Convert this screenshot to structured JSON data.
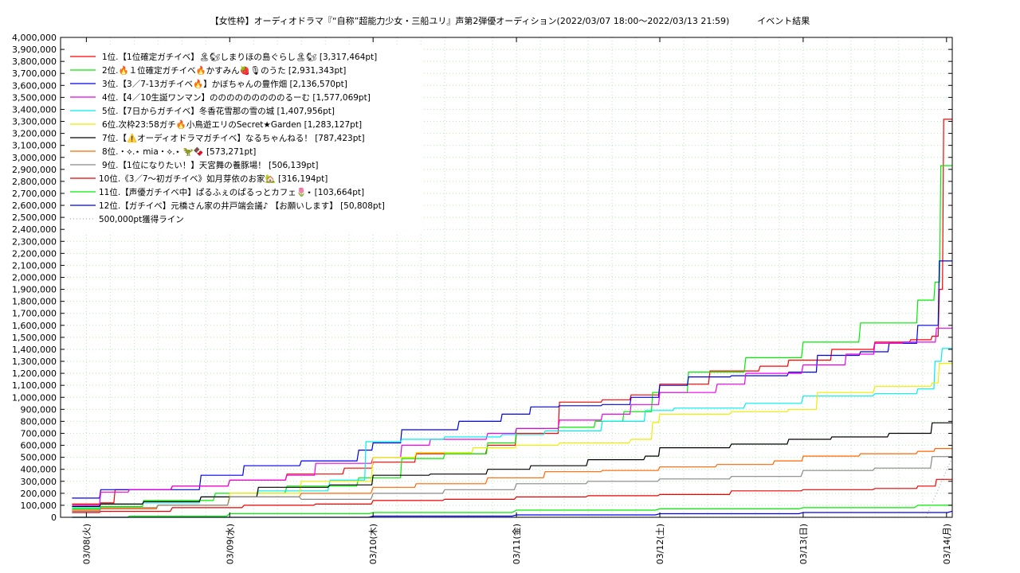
{
  "chart_data": {
    "type": "line",
    "title": "【女性枠】オーディオドラマ『“自称”超能力少女・三船ユリ』声第2弾優オーディション(2022/03/07 18:00〜2022/03/13 21:59)",
    "subtitle": "イベント結果",
    "xlabel": "",
    "ylabel": "",
    "ylim": [
      0,
      4000000
    ],
    "xlim": [
      0,
      6.04
    ],
    "y_ticks": [
      "0",
      "100,000",
      "200,000",
      "300,000",
      "400,000",
      "500,000",
      "600,000",
      "700,000",
      "800,000",
      "900,000",
      "1,000,000",
      "1,100,000",
      "1,200,000",
      "1,300,000",
      "1,400,000",
      "1,500,000",
      "1,600,000",
      "1,700,000",
      "1,800,000",
      "1,900,000",
      "2,000,000",
      "2,100,000",
      "2,200,000",
      "2,300,000",
      "2,400,000",
      "2,500,000",
      "2,600,000",
      "2,700,000",
      "2,800,000",
      "2,900,000",
      "3,000,000",
      "3,100,000",
      "3,200,000",
      "3,300,000",
      "3,400,000",
      "3,500,000",
      "3,600,000",
      "3,700,000",
      "3,800,000",
      "3,900,000",
      "4,000,000"
    ],
    "x_ticks": [
      "03/08(火)",
      "03/09(水)",
      "03/10(木)",
      "03/11(金)",
      "03/12(土)",
      "03/13(日)",
      "03/14(月)"
    ],
    "grid": true,
    "legend_position": "top-left",
    "series": [
      {
        "name": "1位.【1位確定ガチイベ】🏝🐿しまりほの島ぐらし🏝🐿 [3,317,464pt]",
        "color": "#ff0000",
        "dash": "",
        "x": [
          -0.1,
          0.1,
          0.2,
          0.6,
          1.0,
          1.4,
          1.8,
          2.0,
          2.3,
          2.8,
          3.0,
          3.3,
          3.6,
          3.8,
          4.0,
          4.35,
          4.7,
          4.9,
          5.2,
          5.5,
          5.75,
          5.9,
          5.95,
          5.98,
          6.04
        ],
        "y": [
          110000,
          120000,
          230000,
          260000,
          310000,
          360000,
          410000,
          460000,
          530000,
          600000,
          700000,
          960000,
          980000,
          1020000,
          1110000,
          1220000,
          1260000,
          1310000,
          1400000,
          1460000,
          1480000,
          1510000,
          1900000,
          3317464,
          3317464
        ]
      },
      {
        "name": "2位.🔥１位確定ガチイベ🔥かすみん🍓🎙のうた [2,931,343pt]",
        "color": "#00ee00",
        "dash": "",
        "x": [
          -0.1,
          0.1,
          0.4,
          0.9,
          1.4,
          1.9,
          2.2,
          2.5,
          2.8,
          3.0,
          3.3,
          3.55,
          3.75,
          3.95,
          4.2,
          4.6,
          5.0,
          5.4,
          5.6,
          5.8,
          5.92,
          5.96,
          6.04
        ],
        "y": [
          70000,
          90000,
          140000,
          200000,
          260000,
          330000,
          490000,
          530000,
          620000,
          740000,
          750000,
          800000,
          880000,
          1040000,
          1210000,
          1330000,
          1460000,
          1620000,
          1620000,
          1810000,
          1960000,
          2931343,
          2931343
        ]
      },
      {
        "name": "3位.【3／7-13ガチイベ🔥】かぼちゃんの豊作畑 [2,136,570pt]",
        "color": "#0000ee",
        "dash": "",
        "x": [
          -0.1,
          0.1,
          0.4,
          0.8,
          1.1,
          1.5,
          1.9,
          2.0,
          2.2,
          2.6,
          2.9,
          3.1,
          3.3,
          3.6,
          3.8,
          4.0,
          4.2,
          4.5,
          4.9,
          5.1,
          5.4,
          5.6,
          5.8,
          5.95,
          6.04
        ],
        "y": [
          160000,
          230000,
          230000,
          350000,
          430000,
          470000,
          560000,
          620000,
          730000,
          800000,
          860000,
          920000,
          930000,
          940000,
          1000000,
          1100000,
          1170000,
          1180000,
          1210000,
          1350000,
          1380000,
          1450000,
          1600000,
          2136570,
          2136570
        ]
      },
      {
        "name": "4位.【4／10生誕ワンマン】のののののののののるーむ [1,577,069pt]",
        "color": "#ee00ee",
        "dash": "",
        "x": [
          -0.1,
          0.1,
          0.3,
          0.6,
          1.0,
          1.4,
          1.6,
          2.0,
          2.2,
          2.4,
          2.8,
          3.0,
          3.3,
          3.6,
          3.8,
          4.0,
          4.4,
          4.6,
          5.0,
          5.3,
          5.5,
          5.7,
          5.93,
          6.04
        ],
        "y": [
          100000,
          210000,
          230000,
          260000,
          310000,
          350000,
          450000,
          500000,
          600000,
          650000,
          700000,
          740000,
          810000,
          860000,
          940000,
          1040000,
          1110000,
          1200000,
          1270000,
          1360000,
          1450000,
          1460000,
          1577069,
          1577069
        ]
      },
      {
        "name": "5位.【7日からガチイベ】冬香花雪那の雪の城 [1,407,956pt]",
        "color": "#00eeee",
        "dash": "",
        "x": [
          -0.1,
          0.1,
          0.4,
          0.8,
          1.2,
          1.7,
          1.95,
          2.2,
          2.5,
          2.9,
          3.2,
          3.6,
          3.9,
          4.1,
          4.6,
          5.0,
          5.5,
          5.8,
          5.92,
          5.97,
          6.04
        ],
        "y": [
          80000,
          110000,
          120000,
          170000,
          220000,
          310000,
          630000,
          650000,
          670000,
          690000,
          720000,
          800000,
          890000,
          910000,
          950000,
          1010000,
          1030000,
          1070000,
          1300000,
          1407956,
          1407956
        ]
      },
      {
        "name": "6位.次枠23:58ガチ🔥小鳥遊エリのSecret★Garden [1,283,127pt]",
        "color": "#eeee00",
        "dash": "",
        "x": [
          -0.1,
          0.1,
          0.5,
          1.0,
          1.5,
          2.0,
          2.3,
          2.7,
          3.0,
          3.3,
          3.8,
          3.95,
          4.0,
          4.5,
          4.9,
          5.1,
          5.5,
          5.9,
          5.95,
          6.04
        ],
        "y": [
          60000,
          80000,
          100000,
          200000,
          300000,
          500000,
          540000,
          580000,
          600000,
          620000,
          650000,
          790000,
          860000,
          880000,
          900000,
          1040000,
          1090000,
          1120000,
          1283127,
          1283127
        ]
      },
      {
        "name": "7位.【⚠️オーディオドラマガチイベ】なるちゃんねる！ [787,423pt]",
        "color": "#000000",
        "dash": "",
        "x": [
          -0.1,
          0.1,
          0.4,
          0.8,
          1.2,
          1.7,
          2.0,
          2.4,
          2.8,
          3.1,
          3.5,
          3.9,
          4.0,
          4.5,
          4.9,
          5.2,
          5.6,
          5.9,
          6.04
        ],
        "y": [
          90000,
          110000,
          130000,
          170000,
          250000,
          270000,
          350000,
          360000,
          400000,
          430000,
          480000,
          510000,
          580000,
          610000,
          650000,
          670000,
          700000,
          787423,
          787423
        ]
      },
      {
        "name": "8位.・⟡.⋆ mia・⟡.⋆ 🦖🍫 [573,271pt]",
        "color": "#ff6600",
        "dash": "",
        "x": [
          -0.1,
          0.1,
          0.5,
          1.0,
          1.5,
          2.0,
          2.3,
          2.8,
          3.2,
          3.6,
          4.0,
          4.4,
          4.8,
          5.0,
          5.4,
          5.8,
          5.92,
          6.04
        ],
        "y": [
          60000,
          70000,
          100000,
          170000,
          200000,
          250000,
          280000,
          330000,
          380000,
          390000,
          420000,
          440000,
          470000,
          510000,
          530000,
          550000,
          573271,
          573271
        ]
      },
      {
        "name": "9位.【1位になりたい！】天宮舞の養豚場！ [506,139pt]",
        "color": "#888888",
        "dash": "",
        "x": [
          -0.1,
          0.1,
          0.5,
          1.0,
          1.5,
          2.0,
          2.5,
          3.0,
          3.5,
          4.0,
          4.5,
          5.0,
          5.5,
          5.9,
          6.04
        ],
        "y": [
          50000,
          80000,
          100000,
          170000,
          150000,
          200000,
          230000,
          280000,
          300000,
          320000,
          340000,
          390000,
          410000,
          506139,
          506139
        ]
      },
      {
        "name": "10位.《3／7〜初ガチイベ》如月芽依のお家🏡 [316,194pt]",
        "color": "#ee0000",
        "dash": "",
        "x": [
          -0.1,
          0.1,
          0.6,
          1.1,
          1.6,
          2.0,
          2.5,
          3.0,
          3.5,
          4.0,
          4.5,
          5.0,
          5.5,
          5.8,
          5.93,
          6.04
        ],
        "y": [
          40000,
          50000,
          80000,
          100000,
          110000,
          140000,
          150000,
          170000,
          180000,
          190000,
          220000,
          230000,
          240000,
          260000,
          316194,
          316194
        ]
      },
      {
        "name": "11位.【声優ガチイベ中】ぱるふぇのぱるっとカフェ🌷⋆ [103,664pt]",
        "color": "#00ee00",
        "dash": "",
        "x": [
          -0.1,
          0.3,
          1.0,
          2.0,
          3.0,
          4.0,
          5.0,
          5.8,
          6.04
        ],
        "y": [
          0,
          10000,
          30000,
          40000,
          60000,
          70000,
          80000,
          100000,
          103664
        ]
      },
      {
        "name": "12位.【ガチイベ】元橋さん家の井戸端会議♪ 【お願いします】 [50,808pt]",
        "color": "#0000ee",
        "dash": "",
        "x": [
          -0.1,
          1.0,
          2.0,
          3.0,
          4.0,
          5.0,
          6.04
        ],
        "y": [
          0,
          0,
          10000,
          20000,
          30000,
          40000,
          50808
        ]
      },
      {
        "name": "500,000pt獲得ライン",
        "color": "#aaaaaa",
        "dash": "1,3",
        "x": [
          -0.1,
          6.04
        ],
        "y": [
          0,
          500000
        ]
      }
    ]
  }
}
